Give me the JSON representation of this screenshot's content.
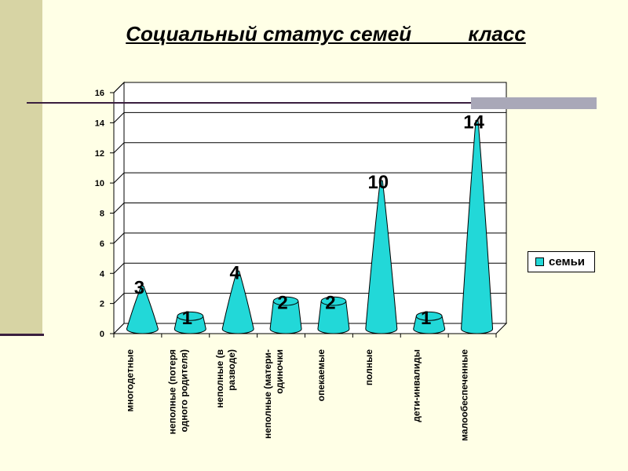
{
  "title": "Социальный статус семей ____ класс",
  "colors": {
    "background": "#FFFFE6",
    "accent_band": "#D7D4A4",
    "rule": "#3A1F3F",
    "series_fill": "#22D8D8"
  },
  "legend": {
    "label": "семьи",
    "position": "right"
  },
  "chart_data": {
    "type": "bar",
    "bar_shape": "cone",
    "categories": [
      "многодетные",
      "неполные (потеря одного родителя)",
      "неполные (в разводе)",
      "неполные (матери-одиночки",
      "опекаемые",
      "полные",
      "дети-инвалиды",
      "малообеспеченные"
    ],
    "category_lines": [
      [
        "многодетные"
      ],
      [
        "неполные (потеря",
        "одного родителя)"
      ],
      [
        "неполные (в",
        "разводе)"
      ],
      [
        "неполные (матери-",
        "одиночки"
      ],
      [
        "опекаемые"
      ],
      [
        "полные"
      ],
      [
        "дети-инвалиды"
      ],
      [
        "малообеспеченные"
      ]
    ],
    "series": [
      {
        "name": "семьи",
        "values": [
          3,
          1,
          4,
          2,
          2,
          10,
          1,
          14
        ]
      }
    ],
    "data_labels": [
      "3",
      "1",
      "4",
      "2",
      "2",
      "10",
      "1",
      "14"
    ],
    "yticks": [
      "0",
      "2",
      "4",
      "6",
      "8",
      "10",
      "12",
      "14",
      "16"
    ],
    "ylim": [
      0,
      16
    ],
    "grid": true
  }
}
